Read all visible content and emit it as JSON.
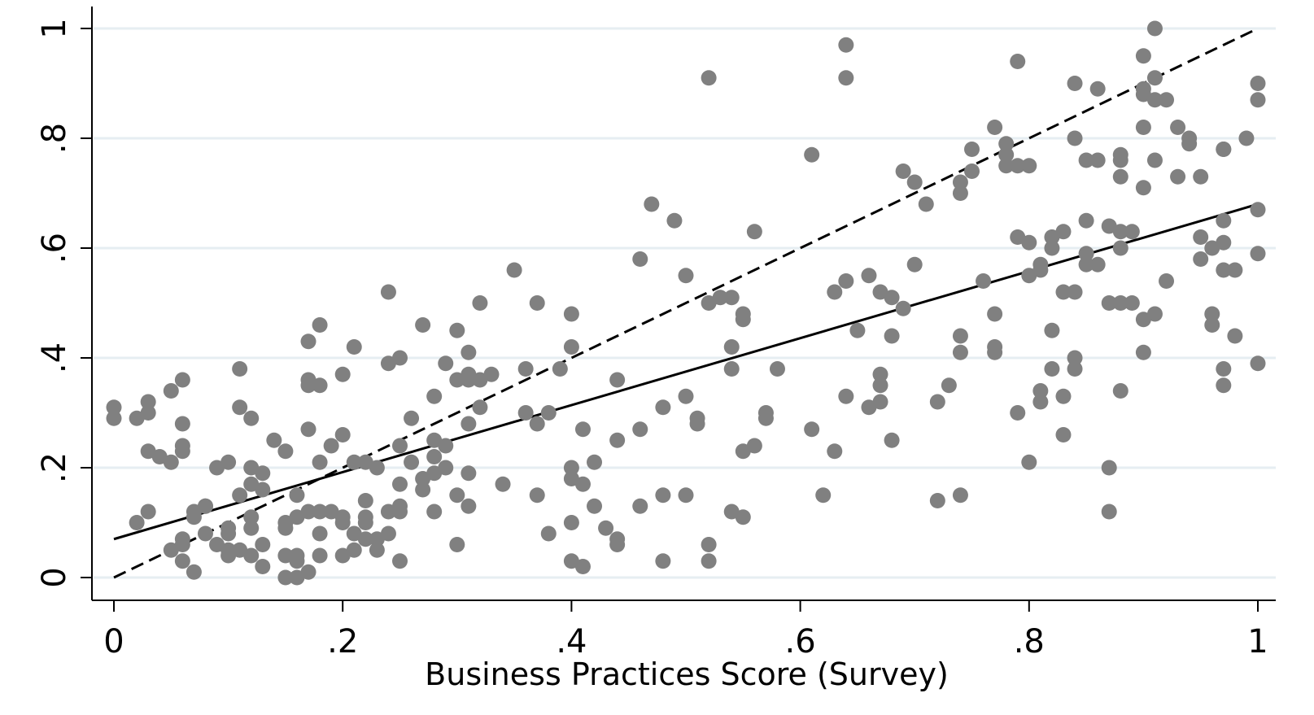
{
  "chart_data": {
    "type": "scatter",
    "xlabel": "Business Practices Score (Survey)",
    "ylabel": "",
    "xlim": [
      0,
      1
    ],
    "ylim": [
      0,
      1
    ],
    "x_ticks": [
      0,
      0.2,
      0.4,
      0.6,
      0.8,
      1
    ],
    "x_tick_labels": [
      "0",
      ".2",
      ".4",
      ".6",
      ".8",
      "1"
    ],
    "y_ticks": [
      0,
      0.2,
      0.4,
      0.6,
      0.8,
      1
    ],
    "y_tick_labels": [
      "0",
      ".2",
      ".4",
      ".6",
      ".8",
      "1"
    ],
    "grid": "horizontal",
    "colors": {
      "points": "#808080",
      "lines": "#000000",
      "grid": "#e6eef2"
    },
    "lines": [
      {
        "style": "solid",
        "x": [
          0,
          1
        ],
        "y": [
          0.07,
          0.68
        ]
      },
      {
        "style": "dashed",
        "x": [
          0,
          1
        ],
        "y": [
          0,
          1
        ]
      }
    ],
    "points": [
      [
        0.0,
        0.31
      ],
      [
        0.0,
        0.29
      ],
      [
        0.02,
        0.29
      ],
      [
        0.03,
        0.32
      ],
      [
        0.03,
        0.3
      ],
      [
        0.03,
        0.23
      ],
      [
        0.04,
        0.22
      ],
      [
        0.05,
        0.34
      ],
      [
        0.05,
        0.21
      ],
      [
        0.06,
        0.36
      ],
      [
        0.06,
        0.28
      ],
      [
        0.06,
        0.24
      ],
      [
        0.06,
        0.23
      ],
      [
        0.02,
        0.1
      ],
      [
        0.03,
        0.12
      ],
      [
        0.05,
        0.05
      ],
      [
        0.06,
        0.07
      ],
      [
        0.06,
        0.03
      ],
      [
        0.06,
        0.06
      ],
      [
        0.07,
        0.12
      ],
      [
        0.07,
        0.11
      ],
      [
        0.07,
        0.01
      ],
      [
        0.08,
        0.13
      ],
      [
        0.08,
        0.13
      ],
      [
        0.08,
        0.08
      ],
      [
        0.09,
        0.2
      ],
      [
        0.09,
        0.06
      ],
      [
        0.1,
        0.21
      ],
      [
        0.1,
        0.09
      ],
      [
        0.1,
        0.04
      ],
      [
        0.1,
        0.05
      ],
      [
        0.1,
        0.08
      ],
      [
        0.11,
        0.31
      ],
      [
        0.11,
        0.15
      ],
      [
        0.11,
        0.05
      ],
      [
        0.11,
        0.38
      ],
      [
        0.12,
        0.2
      ],
      [
        0.12,
        0.17
      ],
      [
        0.12,
        0.29
      ],
      [
        0.12,
        0.11
      ],
      [
        0.12,
        0.09
      ],
      [
        0.12,
        0.04
      ],
      [
        0.13,
        0.02
      ],
      [
        0.13,
        0.19
      ],
      [
        0.13,
        0.16
      ],
      [
        0.13,
        0.06
      ],
      [
        0.14,
        0.25
      ],
      [
        0.15,
        0.23
      ],
      [
        0.15,
        0.09
      ],
      [
        0.15,
        0.04
      ],
      [
        0.15,
        0.0
      ],
      [
        0.15,
        0.1
      ],
      [
        0.16,
        0.03
      ],
      [
        0.16,
        0.15
      ],
      [
        0.16,
        0.11
      ],
      [
        0.16,
        0.0
      ],
      [
        0.16,
        0.04
      ],
      [
        0.17,
        0.27
      ],
      [
        0.17,
        0.43
      ],
      [
        0.17,
        0.35
      ],
      [
        0.17,
        0.12
      ],
      [
        0.17,
        0.01
      ],
      [
        0.17,
        0.36
      ],
      [
        0.18,
        0.46
      ],
      [
        0.18,
        0.35
      ],
      [
        0.18,
        0.21
      ],
      [
        0.18,
        0.12
      ],
      [
        0.18,
        0.08
      ],
      [
        0.18,
        0.04
      ],
      [
        0.19,
        0.12
      ],
      [
        0.19,
        0.24
      ],
      [
        0.2,
        0.26
      ],
      [
        0.2,
        0.37
      ],
      [
        0.2,
        0.11
      ],
      [
        0.2,
        0.1
      ],
      [
        0.2,
        0.04
      ],
      [
        0.21,
        0.05
      ],
      [
        0.21,
        0.08
      ],
      [
        0.21,
        0.21
      ],
      [
        0.22,
        0.21
      ],
      [
        0.22,
        0.14
      ],
      [
        0.22,
        0.1
      ],
      [
        0.22,
        0.07
      ],
      [
        0.21,
        0.42
      ],
      [
        0.22,
        0.11
      ],
      [
        0.23,
        0.07
      ],
      [
        0.23,
        0.05
      ],
      [
        0.23,
        0.2
      ],
      [
        0.24,
        0.08
      ],
      [
        0.24,
        0.39
      ],
      [
        0.24,
        0.12
      ],
      [
        0.24,
        0.52
      ],
      [
        0.25,
        0.4
      ],
      [
        0.25,
        0.24
      ],
      [
        0.25,
        0.13
      ],
      [
        0.25,
        0.12
      ],
      [
        0.25,
        0.17
      ],
      [
        0.25,
        0.03
      ],
      [
        0.26,
        0.29
      ],
      [
        0.26,
        0.21
      ],
      [
        0.27,
        0.46
      ],
      [
        0.27,
        0.18
      ],
      [
        0.27,
        0.16
      ],
      [
        0.28,
        0.22
      ],
      [
        0.28,
        0.19
      ],
      [
        0.28,
        0.25
      ],
      [
        0.28,
        0.33
      ],
      [
        0.28,
        0.12
      ],
      [
        0.29,
        0.39
      ],
      [
        0.29,
        0.24
      ],
      [
        0.29,
        0.2
      ],
      [
        0.3,
        0.15
      ],
      [
        0.3,
        0.06
      ],
      [
        0.3,
        0.36
      ],
      [
        0.3,
        0.45
      ],
      [
        0.31,
        0.41
      ],
      [
        0.31,
        0.28
      ],
      [
        0.31,
        0.37
      ],
      [
        0.31,
        0.36
      ],
      [
        0.31,
        0.19
      ],
      [
        0.31,
        0.13
      ],
      [
        0.32,
        0.36
      ],
      [
        0.32,
        0.5
      ],
      [
        0.32,
        0.31
      ],
      [
        0.33,
        0.37
      ],
      [
        0.34,
        0.17
      ],
      [
        0.35,
        0.56
      ],
      [
        0.36,
        0.3
      ],
      [
        0.36,
        0.38
      ],
      [
        0.37,
        0.5
      ],
      [
        0.37,
        0.28
      ],
      [
        0.37,
        0.15
      ],
      [
        0.38,
        0.3
      ],
      [
        0.38,
        0.08
      ],
      [
        0.39,
        0.38
      ],
      [
        0.4,
        0.42
      ],
      [
        0.4,
        0.1
      ],
      [
        0.4,
        0.03
      ],
      [
        0.4,
        0.18
      ],
      [
        0.4,
        0.2
      ],
      [
        0.4,
        0.48
      ],
      [
        0.41,
        0.02
      ],
      [
        0.41,
        0.27
      ],
      [
        0.41,
        0.17
      ],
      [
        0.42,
        0.21
      ],
      [
        0.42,
        0.13
      ],
      [
        0.43,
        0.09
      ],
      [
        0.44,
        0.36
      ],
      [
        0.44,
        0.06
      ],
      [
        0.44,
        0.07
      ],
      [
        0.44,
        0.25
      ],
      [
        0.46,
        0.27
      ],
      [
        0.46,
        0.58
      ],
      [
        0.46,
        0.13
      ],
      [
        0.47,
        0.68
      ],
      [
        0.48,
        0.31
      ],
      [
        0.48,
        0.03
      ],
      [
        0.48,
        0.15
      ],
      [
        0.49,
        0.65
      ],
      [
        0.5,
        0.55
      ],
      [
        0.5,
        0.33
      ],
      [
        0.5,
        0.15
      ],
      [
        0.51,
        0.28
      ],
      [
        0.51,
        0.29
      ],
      [
        0.52,
        0.91
      ],
      [
        0.52,
        0.5
      ],
      [
        0.52,
        0.06
      ],
      [
        0.52,
        0.03
      ],
      [
        0.53,
        0.51
      ],
      [
        0.54,
        0.38
      ],
      [
        0.54,
        0.51
      ],
      [
        0.54,
        0.42
      ],
      [
        0.54,
        0.12
      ],
      [
        0.55,
        0.11
      ],
      [
        0.55,
        0.47
      ],
      [
        0.55,
        0.23
      ],
      [
        0.55,
        0.48
      ],
      [
        0.56,
        0.63
      ],
      [
        0.56,
        0.24
      ],
      [
        0.57,
        0.3
      ],
      [
        0.57,
        0.29
      ],
      [
        0.58,
        0.38
      ],
      [
        0.61,
        0.27
      ],
      [
        0.61,
        0.77
      ],
      [
        0.62,
        0.15
      ],
      [
        0.63,
        0.52
      ],
      [
        0.63,
        0.23
      ],
      [
        0.64,
        0.33
      ],
      [
        0.64,
        0.91
      ],
      [
        0.64,
        0.97
      ],
      [
        0.64,
        0.54
      ],
      [
        0.65,
        0.45
      ],
      [
        0.66,
        0.31
      ],
      [
        0.66,
        0.55
      ],
      [
        0.67,
        0.52
      ],
      [
        0.67,
        0.37
      ],
      [
        0.67,
        0.35
      ],
      [
        0.67,
        0.32
      ],
      [
        0.68,
        0.25
      ],
      [
        0.68,
        0.51
      ],
      [
        0.68,
        0.44
      ],
      [
        0.69,
        0.74
      ],
      [
        0.69,
        0.49
      ],
      [
        0.7,
        0.57
      ],
      [
        0.7,
        0.72
      ],
      [
        0.71,
        0.68
      ],
      [
        0.72,
        0.32
      ],
      [
        0.72,
        0.14
      ],
      [
        0.73,
        0.35
      ],
      [
        0.74,
        0.72
      ],
      [
        0.74,
        0.7
      ],
      [
        0.74,
        0.44
      ],
      [
        0.74,
        0.41
      ],
      [
        0.74,
        0.15
      ],
      [
        0.75,
        0.74
      ],
      [
        0.75,
        0.78
      ],
      [
        0.76,
        0.54
      ],
      [
        0.77,
        0.82
      ],
      [
        0.77,
        0.48
      ],
      [
        0.77,
        0.41
      ],
      [
        0.77,
        0.42
      ],
      [
        0.78,
        0.75
      ],
      [
        0.78,
        0.79
      ],
      [
        0.78,
        0.77
      ],
      [
        0.79,
        0.75
      ],
      [
        0.79,
        0.62
      ],
      [
        0.79,
        0.94
      ],
      [
        0.79,
        0.3
      ],
      [
        0.8,
        0.55
      ],
      [
        0.8,
        0.21
      ],
      [
        0.8,
        0.61
      ],
      [
        0.8,
        0.75
      ],
      [
        0.81,
        0.57
      ],
      [
        0.81,
        0.56
      ],
      [
        0.81,
        0.34
      ],
      [
        0.81,
        0.32
      ],
      [
        0.82,
        0.6
      ],
      [
        0.82,
        0.45
      ],
      [
        0.82,
        0.38
      ],
      [
        0.82,
        0.62
      ],
      [
        0.83,
        0.52
      ],
      [
        0.83,
        0.33
      ],
      [
        0.83,
        0.26
      ],
      [
        0.83,
        0.63
      ],
      [
        0.84,
        0.8
      ],
      [
        0.84,
        0.38
      ],
      [
        0.84,
        0.4
      ],
      [
        0.84,
        0.9
      ],
      [
        0.84,
        0.52
      ],
      [
        0.85,
        0.57
      ],
      [
        0.85,
        0.65
      ],
      [
        0.85,
        0.59
      ],
      [
        0.85,
        0.76
      ],
      [
        0.86,
        0.76
      ],
      [
        0.86,
        0.89
      ],
      [
        0.86,
        0.57
      ],
      [
        0.87,
        0.64
      ],
      [
        0.87,
        0.5
      ],
      [
        0.87,
        0.12
      ],
      [
        0.87,
        0.2
      ],
      [
        0.88,
        0.77
      ],
      [
        0.88,
        0.76
      ],
      [
        0.88,
        0.73
      ],
      [
        0.88,
        0.6
      ],
      [
        0.88,
        0.5
      ],
      [
        0.88,
        0.34
      ],
      [
        0.88,
        0.63
      ],
      [
        0.89,
        0.63
      ],
      [
        0.89,
        0.5
      ],
      [
        0.9,
        0.89
      ],
      [
        0.9,
        0.88
      ],
      [
        0.9,
        0.82
      ],
      [
        0.9,
        0.71
      ],
      [
        0.9,
        0.47
      ],
      [
        0.9,
        0.41
      ],
      [
        0.9,
        0.95
      ],
      [
        0.91,
        1.0
      ],
      [
        0.91,
        0.87
      ],
      [
        0.91,
        0.76
      ],
      [
        0.91,
        0.91
      ],
      [
        0.91,
        0.48
      ],
      [
        0.92,
        0.54
      ],
      [
        0.92,
        0.87
      ],
      [
        0.93,
        0.73
      ],
      [
        0.93,
        0.82
      ],
      [
        0.94,
        0.8
      ],
      [
        0.94,
        0.79
      ],
      [
        0.95,
        0.73
      ],
      [
        0.95,
        0.62
      ],
      [
        0.95,
        0.58
      ],
      [
        0.96,
        0.6
      ],
      [
        0.96,
        0.48
      ],
      [
        0.96,
        0.46
      ],
      [
        0.97,
        0.78
      ],
      [
        0.97,
        0.78
      ],
      [
        0.97,
        0.65
      ],
      [
        0.97,
        0.61
      ],
      [
        0.97,
        0.56
      ],
      [
        0.97,
        0.38
      ],
      [
        0.97,
        0.35
      ],
      [
        0.98,
        0.56
      ],
      [
        0.98,
        0.44
      ],
      [
        0.99,
        0.8
      ],
      [
        1.0,
        0.9
      ],
      [
        1.0,
        0.87
      ],
      [
        1.0,
        0.67
      ],
      [
        1.0,
        0.59
      ],
      [
        1.0,
        0.39
      ]
    ]
  }
}
